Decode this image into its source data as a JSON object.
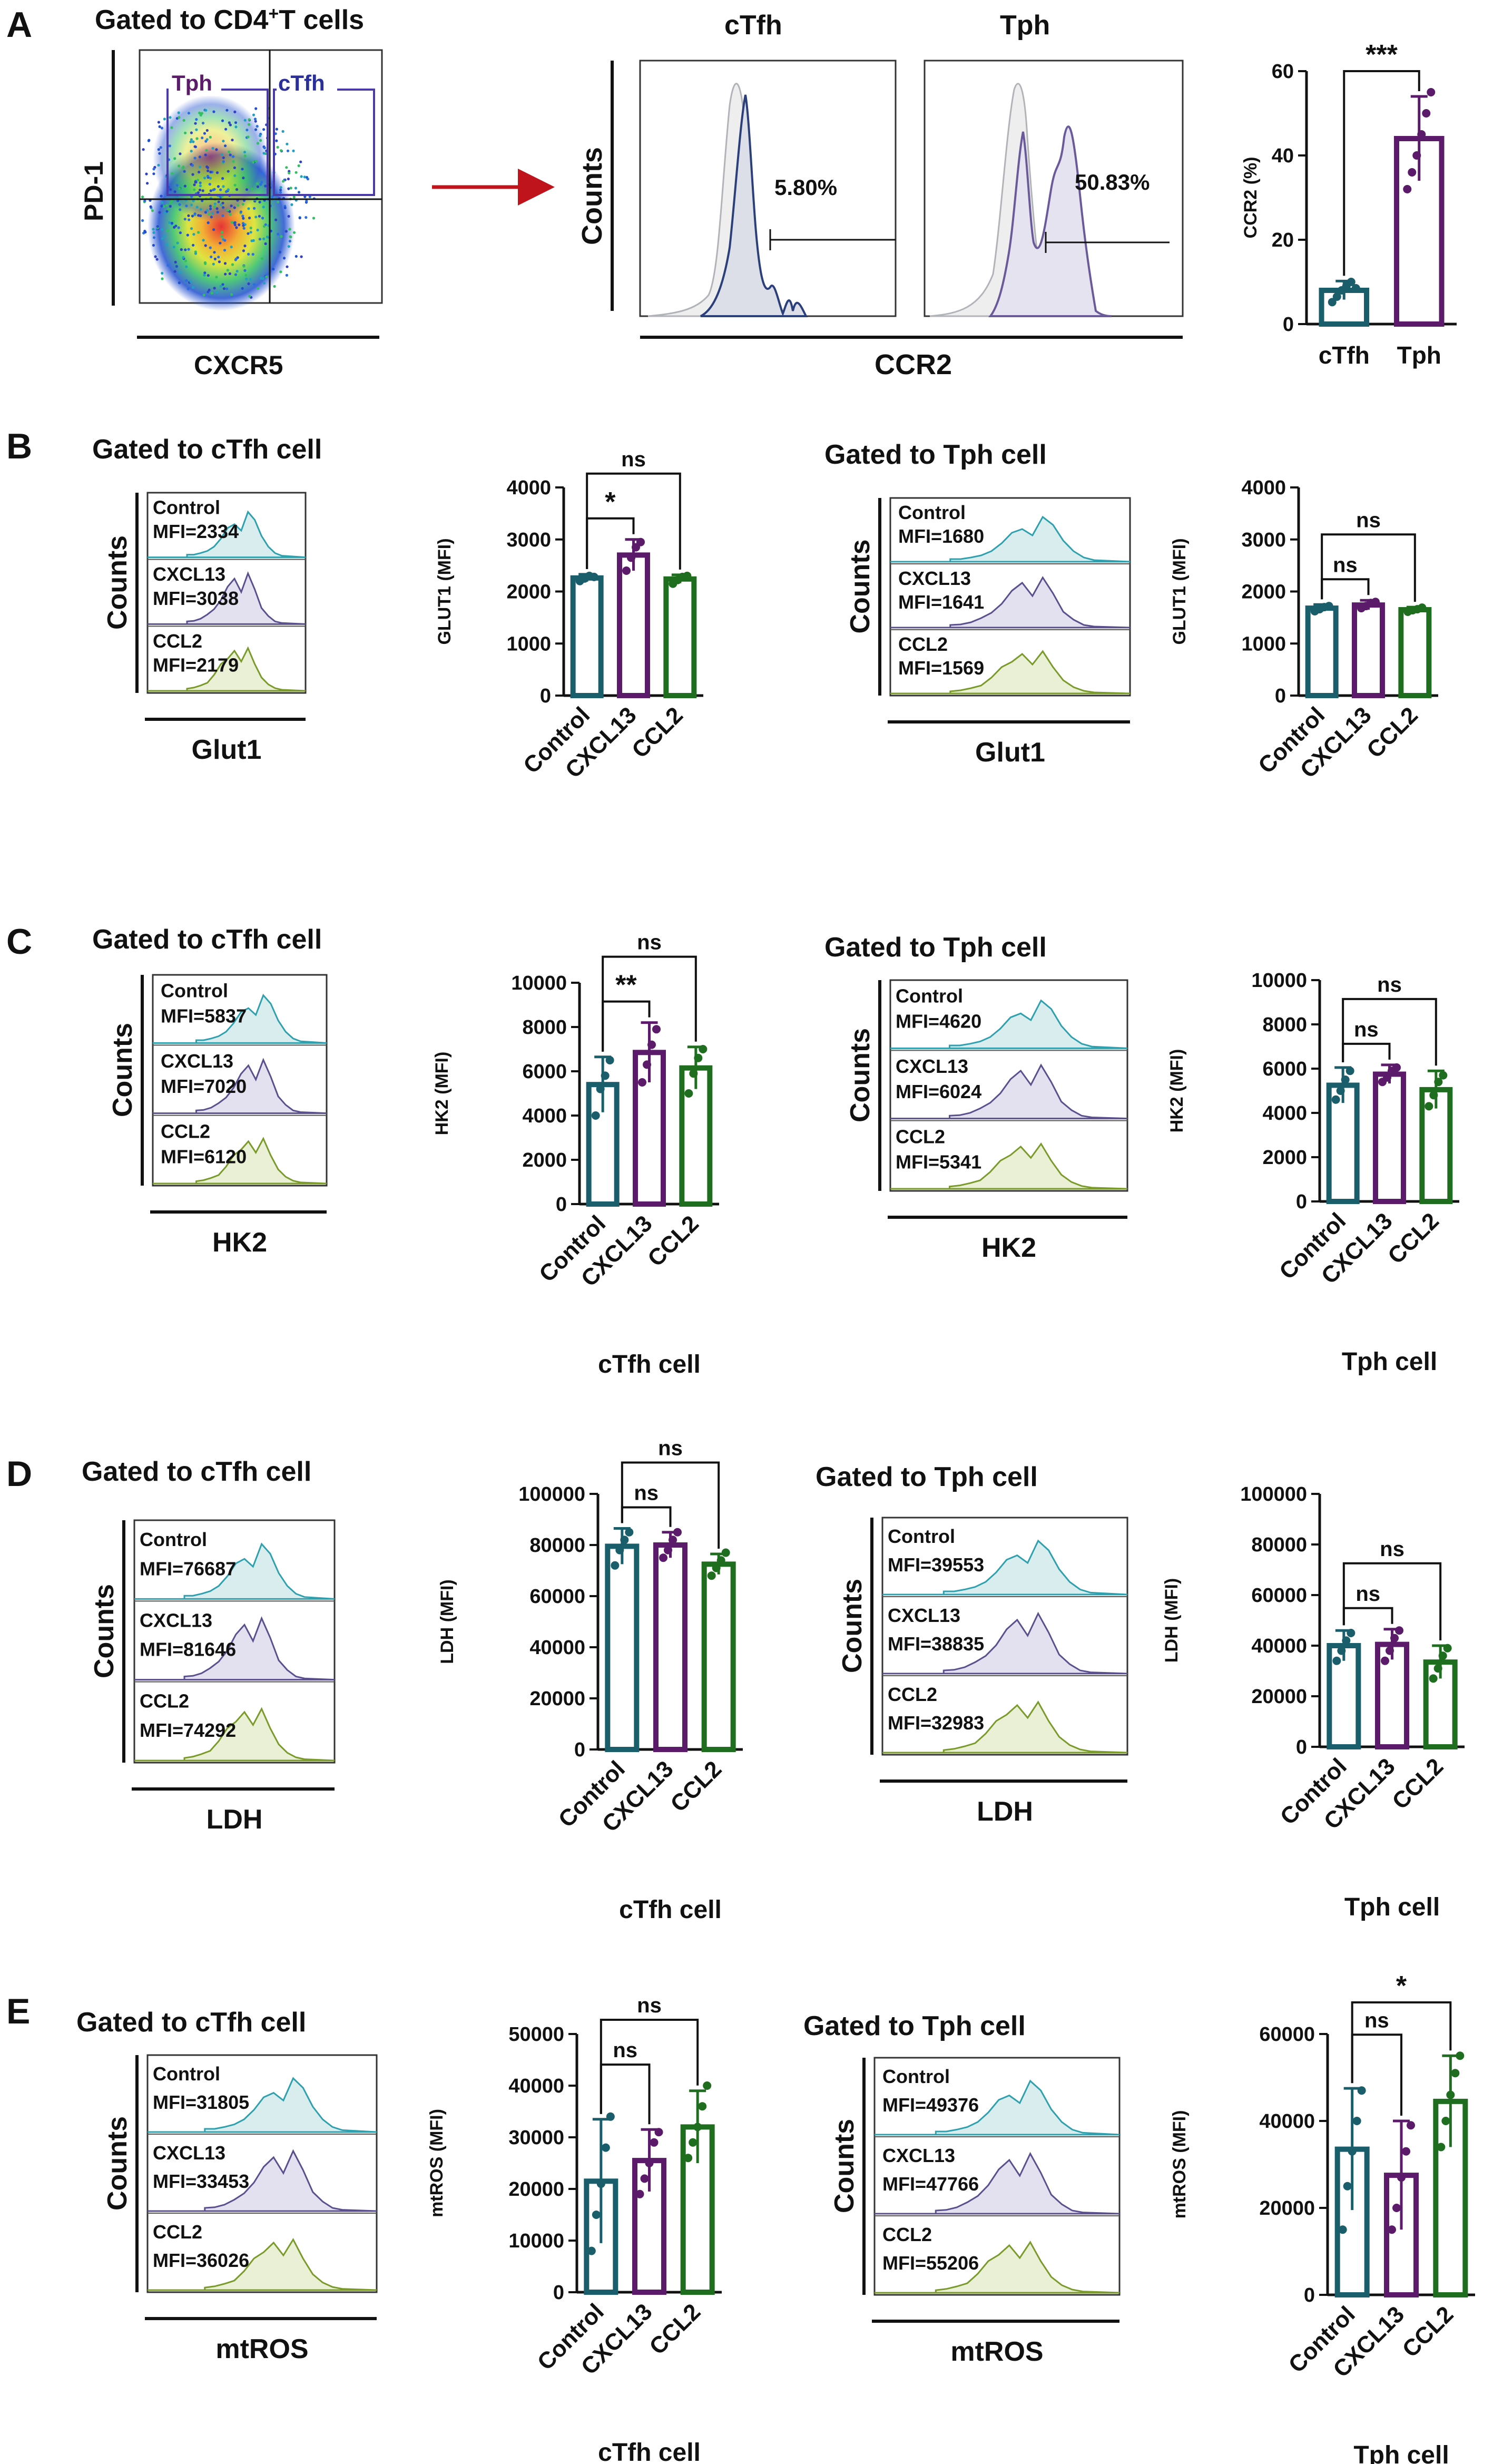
{
  "colors": {
    "control": "#1b5e6b",
    "cxcl13": "#5c1a6b",
    "ccl2": "#1f6e1f",
    "hist_control": "#2fa0ad",
    "hist_cxcl13": "#5b4f8e",
    "hist_ccl2": "#7a9a2a",
    "hist_fill_control": "#d9edef",
    "hist_fill_cxcl13": "#e3e0ef",
    "hist_fill_ccl2": "#e9f0d6",
    "gate": "#4a3aa8",
    "arrow": "#c0141c",
    "ctfh_hist": "#2b3f7a",
    "tph_hist": "#6a5a9a",
    "isotype": "#b0b4b8"
  },
  "panel_a": {
    "letter": "A",
    "gating_title": "Gated to CD4",
    "gating_sup": "+",
    "gating_title_tail": "T cells",
    "y_axis": "PD-1",
    "x_axis": "CXCR5",
    "gate_tph": "Tph",
    "gate_ctfh": "cTfh",
    "hist_title_ctfh": "cTfh",
    "hist_title_tph": "Tph",
    "hist_y_axis": "Counts",
    "hist_x_axis": "CCR2",
    "pct_ctfh": "5.80%",
    "pct_tph": "50.83%"
  },
  "panel_b": {
    "letter": "B",
    "left_title": "Gated to cTfh cell",
    "right_title": "Gated to Tph cell",
    "hist_y_axis": "Counts",
    "marker": "Glut1",
    "left_rows": [
      {
        "name": "Control",
        "mfi": "MFI=2334"
      },
      {
        "name": "CXCL13",
        "mfi": "MFI=3038"
      },
      {
        "name": "CCL2",
        "mfi": "MFI=2179"
      }
    ],
    "right_rows": [
      {
        "name": "Control",
        "mfi": "MFI=1680"
      },
      {
        "name": "CXCL13",
        "mfi": "MFI=1641"
      },
      {
        "name": "CCL2",
        "mfi": "MFI=1569"
      }
    ]
  },
  "panel_c": {
    "letter": "C",
    "left_title": "Gated to cTfh cell",
    "right_title": "Gated to Tph cell",
    "hist_y_axis": "Counts",
    "marker": "HK2",
    "left_rows": [
      {
        "name": "Control",
        "mfi": "MFI=5837"
      },
      {
        "name": "CXCL13",
        "mfi": "MFI=7020"
      },
      {
        "name": "CCL2",
        "mfi": "MFI=6120"
      }
    ],
    "right_rows": [
      {
        "name": "Control",
        "mfi": "MFI=4620"
      },
      {
        "name": "CXCL13",
        "mfi": "MFI=6024"
      },
      {
        "name": "CCL2",
        "mfi": "MFI=5341"
      }
    ]
  },
  "panel_d": {
    "letter": "D",
    "left_title": "Gated to cTfh cell",
    "right_title": "Gated to Tph cell",
    "hist_y_axis": "Counts",
    "marker": "LDH",
    "left_rows": [
      {
        "name": "Control",
        "mfi": "MFI=76687"
      },
      {
        "name": "CXCL13",
        "mfi": "MFI=81646"
      },
      {
        "name": "CCL2",
        "mfi": "MFI=74292"
      }
    ],
    "right_rows": [
      {
        "name": "Control",
        "mfi": "MFI=39553"
      },
      {
        "name": "CXCL13",
        "mfi": "MFI=38835"
      },
      {
        "name": "CCL2",
        "mfi": "MFI=32983"
      }
    ]
  },
  "panel_e": {
    "letter": "E",
    "left_title": "Gated to cTfh cell",
    "right_title": "Gated to Tph cell",
    "hist_y_axis": "Counts",
    "marker": "mtROS",
    "left_rows": [
      {
        "name": "Control",
        "mfi": "MFI=31805"
      },
      {
        "name": "CXCL13",
        "mfi": "MFI=33453"
      },
      {
        "name": "CCL2",
        "mfi": "MFI=36026"
      }
    ],
    "right_rows": [
      {
        "name": "Control",
        "mfi": "MFI=49376"
      },
      {
        "name": "CXCL13",
        "mfi": "MFI=47766"
      },
      {
        "name": "CCL2",
        "mfi": "MFI=55206"
      }
    ]
  },
  "chart_data": [
    {
      "id": "ccr2",
      "type": "bar",
      "title": "",
      "xlabel": "",
      "ylabel": "CCR2 (%)",
      "categories": [
        "cTfh",
        "Tph"
      ],
      "values": [
        8,
        44
      ],
      "errors": [
        2.2,
        10
      ],
      "points": [
        [
          5.2,
          6.5,
          8,
          9,
          10,
          8.5
        ],
        [
          32,
          36,
          40,
          45,
          50,
          55
        ]
      ],
      "ylim": [
        0,
        60
      ],
      "yticks": [
        "0",
        "20",
        "40",
        "60"
      ],
      "annotations": [
        {
          "from": 0,
          "to": 1,
          "text": "***"
        }
      ]
    },
    {
      "id": "glut1_ctfh",
      "type": "bar",
      "title": "",
      "xlabel": "",
      "ylabel": "GLUT1 (MFI)",
      "categories": [
        "Control",
        "CXCL13",
        "CCL2"
      ],
      "values": [
        2260,
        2700,
        2240
      ],
      "errors": [
        70,
        300,
        80
      ],
      "points": [
        [
          2200,
          2250,
          2300,
          2280
        ],
        [
          2400,
          2650,
          2850,
          2950
        ],
        [
          2150,
          2220,
          2280,
          2300
        ]
      ],
      "ylim": [
        0,
        4000
      ],
      "yticks": [
        "0",
        "1000",
        "2000",
        "3000",
        "4000"
      ],
      "annotations": [
        {
          "from": 0,
          "to": 1,
          "text": "*"
        },
        {
          "from": 0,
          "to": 2,
          "text": "ns"
        }
      ]
    },
    {
      "id": "glut1_tph",
      "type": "bar",
      "title": "",
      "xlabel": "",
      "ylabel": "GLUT1 (MFI)",
      "categories": [
        "Control",
        "CXCL13",
        "CCL2"
      ],
      "values": [
        1680,
        1740,
        1650
      ],
      "errors": [
        70,
        90,
        50
      ],
      "points": [
        [
          1620,
          1660,
          1700,
          1720
        ],
        [
          1680,
          1720,
          1780,
          1800
        ],
        [
          1610,
          1640,
          1660,
          1690
        ]
      ],
      "ylim": [
        0,
        4000
      ],
      "yticks": [
        "0",
        "1000",
        "2000",
        "3000",
        "4000"
      ],
      "annotations": [
        {
          "from": 0,
          "to": 1,
          "text": "ns"
        },
        {
          "from": 0,
          "to": 2,
          "text": "ns"
        }
      ]
    },
    {
      "id": "hk2_ctfh",
      "type": "bar",
      "title": "cTfh cell",
      "xlabel": "",
      "ylabel": "HK2 (MFI)",
      "categories": [
        "Control",
        "CXCL13",
        "CCL2"
      ],
      "values": [
        5400,
        6850,
        6150
      ],
      "errors": [
        1250,
        1350,
        950
      ],
      "points": [
        [
          4000,
          5200,
          5800,
          6500
        ],
        [
          5500,
          6300,
          7200,
          7900
        ],
        [
          5000,
          5900,
          6600,
          7000
        ]
      ],
      "ylim": [
        0,
        10000
      ],
      "yticks": [
        "0",
        "2000",
        "4000",
        "6000",
        "8000",
        "10000"
      ],
      "annotations": [
        {
          "from": 0,
          "to": 1,
          "text": "**"
        },
        {
          "from": 0,
          "to": 2,
          "text": "ns"
        }
      ]
    },
    {
      "id": "hk2_tph",
      "type": "bar",
      "title": "Tph cell",
      "xlabel": "",
      "ylabel": "HK2 (MFI)",
      "categories": [
        "Control",
        "CXCL13",
        "CCL2"
      ],
      "values": [
        5250,
        5750,
        5050
      ],
      "errors": [
        800,
        420,
        850
      ],
      "points": [
        [
          4600,
          5000,
          5500,
          5900
        ],
        [
          5400,
          5600,
          5900,
          6050
        ],
        [
          4300,
          4800,
          5400,
          5700
        ]
      ],
      "ylim": [
        0,
        10000
      ],
      "yticks": [
        "0",
        "2000",
        "4000",
        "6000",
        "8000",
        "10000"
      ],
      "annotations": [
        {
          "from": 0,
          "to": 1,
          "text": "ns"
        },
        {
          "from": 0,
          "to": 2,
          "text": "ns"
        }
      ]
    },
    {
      "id": "ldh_ctfh",
      "type": "bar",
      "title": "cTfh cell",
      "xlabel": "",
      "ylabel": "LDH (MFI)",
      "categories": [
        "Control",
        "CXCL13",
        "CCL2"
      ],
      "values": [
        79500,
        80000,
        72500
      ],
      "errors": [
        7000,
        5000,
        4000
      ],
      "points": [
        [
          72000,
          78000,
          82000,
          85000
        ],
        [
          75000,
          78000,
          82000,
          85000
        ],
        [
          68000,
          71000,
          74000,
          77000
        ]
      ],
      "ylim": [
        0,
        100000
      ],
      "yticks": [
        "0",
        "20000",
        "40000",
        "60000",
        "80000",
        "100000"
      ],
      "annotations": [
        {
          "from": 0,
          "to": 1,
          "text": "ns"
        },
        {
          "from": 0,
          "to": 2,
          "text": "ns"
        }
      ]
    },
    {
      "id": "ldh_tph",
      "type": "bar",
      "title": "Tph cell",
      "xlabel": "",
      "ylabel": "LDH (MFI)",
      "categories": [
        "Control",
        "CXCL13",
        "CCL2"
      ],
      "values": [
        40000,
        40500,
        33500
      ],
      "errors": [
        6000,
        6000,
        6500
      ],
      "points": [
        [
          34000,
          38000,
          42000,
          45000
        ],
        [
          34000,
          38000,
          43000,
          46000
        ],
        [
          27000,
          31000,
          36000,
          39000
        ]
      ],
      "ylim": [
        0,
        100000
      ],
      "yticks": [
        "0",
        "20000",
        "40000",
        "60000",
        "80000",
        "100000"
      ],
      "annotations": [
        {
          "from": 0,
          "to": 1,
          "text": "ns"
        },
        {
          "from": 0,
          "to": 2,
          "text": "ns"
        }
      ]
    },
    {
      "id": "mtros_ctfh",
      "type": "bar",
      "title": "cTfh cell",
      "xlabel": "",
      "ylabel": "mtROS (MFI)",
      "categories": [
        "Control",
        "CXCL13",
        "CCL2"
      ],
      "values": [
        21500,
        25500,
        32000
      ],
      "errors": [
        12000,
        6000,
        7000
      ],
      "points": [
        [
          8000,
          15000,
          21000,
          28000,
          34000
        ],
        [
          19000,
          22000,
          25000,
          29000,
          31000
        ],
        [
          26000,
          29000,
          32000,
          36000,
          40000
        ]
      ],
      "ylim": [
        0,
        50000
      ],
      "yticks": [
        "0",
        "10000",
        "20000",
        "30000",
        "40000",
        "50000"
      ],
      "annotations": [
        {
          "from": 0,
          "to": 1,
          "text": "ns"
        },
        {
          "from": 0,
          "to": 2,
          "text": "ns"
        }
      ]
    },
    {
      "id": "mtros_tph",
      "type": "bar",
      "title": "Tph cell",
      "xlabel": "",
      "ylabel": "mtROS (MFI)",
      "categories": [
        "Control",
        "CXCL13",
        "CCL2"
      ],
      "values": [
        33500,
        27500,
        44500
      ],
      "errors": [
        14000,
        12500,
        10500
      ],
      "points": [
        [
          15000,
          25000,
          33000,
          40000,
          47000
        ],
        [
          15000,
          20000,
          27000,
          33000,
          39000
        ],
        [
          34000,
          40000,
          46000,
          51000,
          55000
        ]
      ],
      "ylim": [
        0,
        60000
      ],
      "yticks": [
        "0",
        "20000",
        "40000",
        "60000"
      ],
      "annotations": [
        {
          "from": 0,
          "to": 1,
          "text": "ns"
        },
        {
          "from": 0,
          "to": 2,
          "text": "*"
        }
      ]
    }
  ]
}
